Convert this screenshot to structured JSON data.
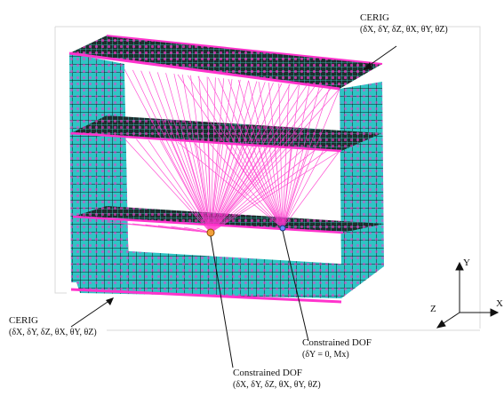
{
  "annotations": {
    "cerig_top": {
      "title": "CERIG",
      "dofs": "(δX, δY, δZ, θX, θY, θZ)"
    },
    "cerig_bottom": {
      "title": "CERIG",
      "dofs": "(δX, δY, δZ, θX, θY, θZ)"
    },
    "constrained_dof_center": {
      "title": "Constrained DOF",
      "dofs": "(δX, δY, δZ, θX, θY, θZ)"
    },
    "constrained_dof_right": {
      "title": "Constrained DOF",
      "dofs": "(δY = 0, Mx)"
    }
  },
  "axes": {
    "y": "Y",
    "z": "Z",
    "x": "X"
  },
  "colors": {
    "mesh_fill": "#2fc4c4",
    "mesh_line": "#101010",
    "rigid_links": "#ff33cc",
    "deck_dark": "#1a2a2a",
    "frame": "#d9d9d9"
  }
}
